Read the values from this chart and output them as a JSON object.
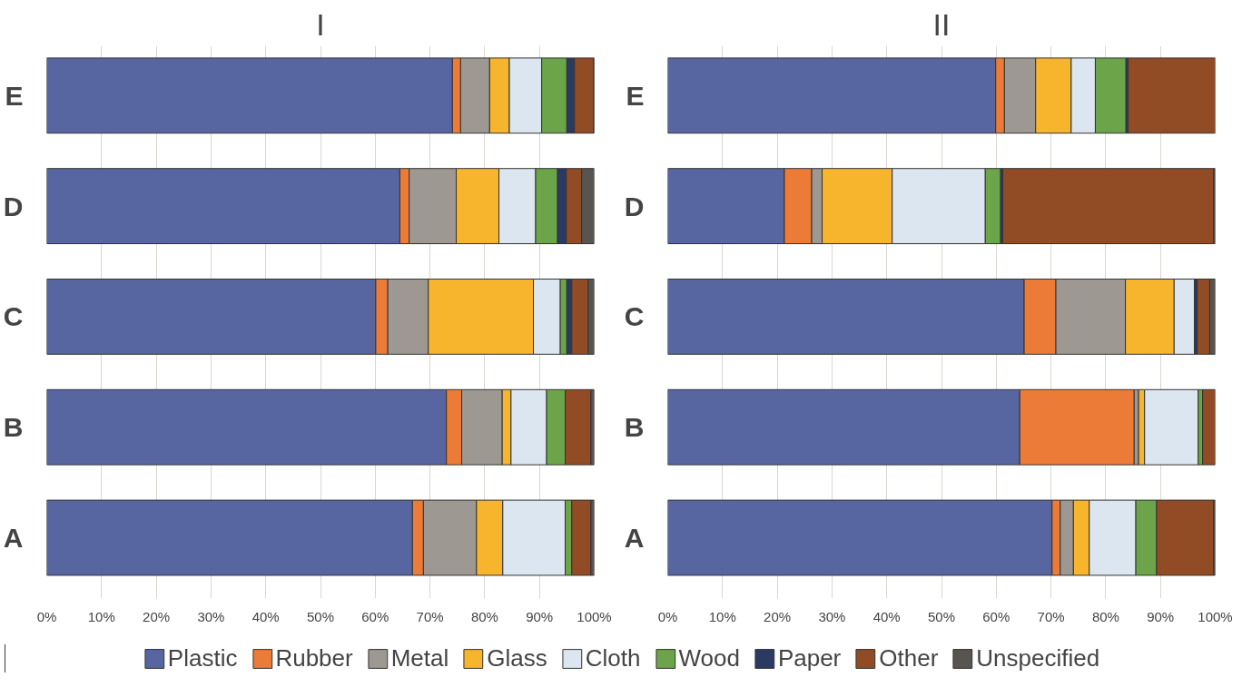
{
  "chart_data": [
    {
      "type": "bar",
      "title": "I",
      "orientation": "horizontal",
      "stacked": true,
      "categories": [
        "E",
        "D",
        "C",
        "B",
        "A"
      ],
      "xlim": [
        0,
        100
      ],
      "xticks": [
        {
          "value": 0,
          "label": "0%"
        },
        {
          "value": 10,
          "label": "10%"
        },
        {
          "value": 20,
          "label": "20%"
        },
        {
          "value": 30,
          "label": "30%"
        },
        {
          "value": 40,
          "label": "40%"
        },
        {
          "value": 50,
          "label": "50%"
        },
        {
          "value": 60,
          "label": "60%"
        },
        {
          "value": 70,
          "label": "70%"
        },
        {
          "value": 80,
          "label": "80%"
        },
        {
          "value": 90,
          "label": "90%"
        },
        {
          "value": 100,
          "label": "100%"
        }
      ],
      "grid": "x",
      "legend": "bottom",
      "series": [
        {
          "name": "Plastic",
          "color": "#5766a1",
          "values": [
            74.1,
            64.5,
            60.1,
            73.0,
            66.8
          ]
        },
        {
          "name": "Rubber",
          "color": "#ec7b37",
          "values": [
            1.5,
            1.7,
            2.2,
            2.8,
            2.0
          ]
        },
        {
          "name": "Metal",
          "color": "#9d9891",
          "values": [
            5.3,
            8.6,
            7.4,
            7.4,
            9.7
          ]
        },
        {
          "name": "Glass",
          "color": "#f7b42d",
          "values": [
            3.6,
            7.8,
            19.2,
            1.6,
            4.8
          ]
        },
        {
          "name": "Cloth",
          "color": "#dce6f0",
          "values": [
            5.9,
            6.7,
            4.9,
            6.5,
            11.4
          ]
        },
        {
          "name": "Wood",
          "color": "#6ca549",
          "values": [
            4.6,
            4.0,
            1.2,
            3.4,
            1.2
          ]
        },
        {
          "name": "Paper",
          "color": "#2b3a63",
          "values": [
            1.4,
            1.6,
            0.9,
            0,
            0
          ]
        },
        {
          "name": "Other",
          "color": "#914c26",
          "values": [
            3.5,
            2.8,
            3.0,
            4.7,
            3.5
          ]
        },
        {
          "name": "Unspecified",
          "color": "#58544f",
          "values": [
            0.1,
            2.3,
            1.1,
            0.6,
            0.6
          ]
        }
      ]
    },
    {
      "type": "bar",
      "title": "II",
      "orientation": "horizontal",
      "stacked": true,
      "categories": [
        "E",
        "D",
        "C",
        "B",
        "A"
      ],
      "xlim": [
        0,
        100
      ],
      "xticks": [
        {
          "value": 0,
          "label": "0%"
        },
        {
          "value": 10,
          "label": "10%"
        },
        {
          "value": 20,
          "label": "20%"
        },
        {
          "value": 30,
          "label": "30%"
        },
        {
          "value": 40,
          "label": "40%"
        },
        {
          "value": 50,
          "label": "50%"
        },
        {
          "value": 60,
          "label": "60%"
        },
        {
          "value": 70,
          "label": "70%"
        },
        {
          "value": 80,
          "label": "80%"
        },
        {
          "value": 90,
          "label": "90%"
        },
        {
          "value": 100,
          "label": "100%"
        }
      ],
      "grid": "x",
      "series": [
        {
          "color": "#5766a1",
          "values": [
            59.9,
            21.3,
            65.1,
            64.3,
            70.2
          ]
        },
        {
          "color": "#ec7b37",
          "values": [
            1.6,
            5.0,
            5.8,
            20.9,
            1.5
          ]
        },
        {
          "color": "#9d9891",
          "values": [
            5.7,
            1.9,
            12.7,
            0.8,
            2.4
          ]
        },
        {
          "color": "#f7b42d",
          "values": [
            6.5,
            12.8,
            8.9,
            1.1,
            2.9
          ]
        },
        {
          "color": "#dce6f0",
          "values": [
            4.4,
            17.0,
            3.7,
            9.8,
            8.5
          ]
        },
        {
          "color": "#6ca549",
          "values": [
            5.6,
            2.8,
            0,
            0.8,
            3.8
          ]
        },
        {
          "color": "#2b3a63",
          "values": [
            0.4,
            0.4,
            0.5,
            0,
            0
          ]
        },
        {
          "color": "#914c26",
          "values": [
            15.9,
            38.5,
            2.3,
            2.3,
            10.4
          ]
        },
        {
          "color": "#58544f",
          "values": [
            0,
            0.3,
            1.0,
            0,
            0.3
          ]
        }
      ]
    }
  ]
}
